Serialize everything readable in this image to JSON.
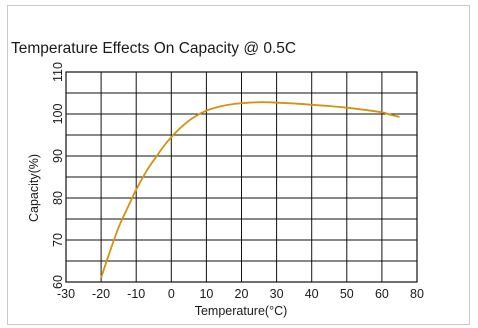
{
  "chart_data": {
    "type": "line",
    "title": "Temperature Effects On Capacity @ 0.5C",
    "xlabel": "Temperature(°C)",
    "ylabel": "Capacity(%)",
    "xlim": [
      -30,
      80
    ],
    "ylim": [
      60,
      110
    ],
    "x_ticks": [
      "-30",
      "-20",
      "-10",
      "0",
      "10",
      "20",
      "30",
      "40",
      "50",
      "60",
      "80"
    ],
    "y_ticks": [
      "60",
      "70",
      "80",
      "90",
      "100",
      "110"
    ],
    "grid": true,
    "series_color": "#D4920F",
    "series": [
      {
        "x": [
          -20,
          -18,
          -15,
          -12,
          -10,
          -7,
          -5,
          -2,
          0,
          3,
          6,
          10,
          14,
          18,
          22,
          26,
          30,
          35,
          40,
          45,
          50,
          55,
          60,
          65,
          70
        ],
        "y": [
          61,
          66,
          73,
          78.5,
          82,
          86.5,
          89,
          92.5,
          94.5,
          97,
          99,
          100.8,
          101.8,
          102.4,
          102.7,
          102.8,
          102.7,
          102.5,
          102.2,
          101.9,
          101.5,
          101.0,
          100.4,
          99.8,
          99.3
        ]
      }
    ]
  }
}
